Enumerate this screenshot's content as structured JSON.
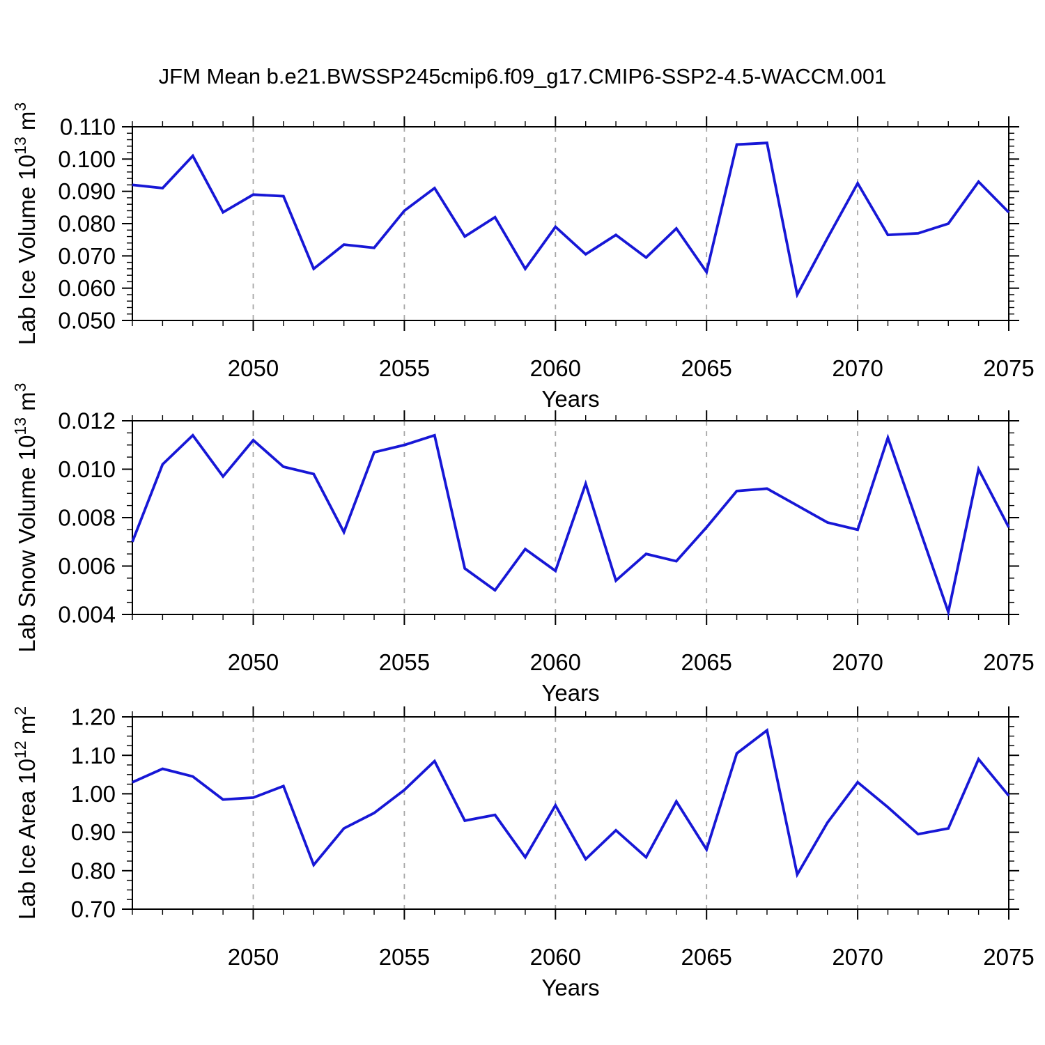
{
  "title": "JFM Mean b.e21.BWSSP245cmip6.f09_g17.CMIP6-SSP2-4.5-WACCM.001",
  "colors": {
    "line": "#1717d6",
    "frame": "#000000",
    "grid": "#a6a6a6",
    "background": "#ffffff"
  },
  "chart_data": [
    {
      "id": "lab-ice-volume",
      "type": "line",
      "ylabel_text": "Lab Ice Volume 10^13 m^3",
      "ylabel_parts": [
        {
          "t": "Lab Ice Volume 10",
          "sup": false
        },
        {
          "t": "13",
          "sup": true
        },
        {
          "t": " m",
          "sup": false
        },
        {
          "t": "3",
          "sup": true
        }
      ],
      "xlabel": "Years",
      "xlim": [
        2046,
        2075
      ],
      "ylim": [
        0.05,
        0.11
      ],
      "xticks": {
        "values": [
          2050,
          2055,
          2060,
          2065,
          2070,
          2075
        ],
        "labels": [
          "2050",
          "2055",
          "2060",
          "2065",
          "2070",
          "2075"
        ],
        "minor_step": 1
      },
      "yticks": {
        "values": [
          0.05,
          0.06,
          0.07,
          0.08,
          0.09,
          0.1,
          0.11
        ],
        "labels": [
          "0.050",
          "0.060",
          "0.070",
          "0.080",
          "0.090",
          "0.100",
          "0.110"
        ],
        "minor_step": 0.002
      },
      "grid_x": [
        2050,
        2055,
        2060,
        2065,
        2070
      ],
      "grid_style": "vertical-dashed",
      "legend": "none",
      "x": [
        2046,
        2047,
        2048,
        2049,
        2050,
        2051,
        2052,
        2053,
        2054,
        2055,
        2056,
        2057,
        2058,
        2059,
        2060,
        2061,
        2062,
        2063,
        2064,
        2065,
        2066,
        2067,
        2068,
        2069,
        2070,
        2071,
        2072,
        2073,
        2074,
        2075
      ],
      "values": [
        0.092,
        0.091,
        0.101,
        0.0835,
        0.089,
        0.0885,
        0.066,
        0.0735,
        0.0725,
        0.084,
        0.091,
        0.076,
        0.082,
        0.066,
        0.079,
        0.0705,
        0.0765,
        0.0695,
        0.0785,
        0.065,
        0.1045,
        0.105,
        0.058,
        0.0755,
        0.0925,
        0.0765,
        0.077,
        0.08,
        0.093,
        0.0835
      ]
    },
    {
      "id": "lab-snow-volume",
      "type": "line",
      "ylabel_text": "Lab Snow Volume 10^13 m^3",
      "ylabel_parts": [
        {
          "t": "Lab Snow Volume 10",
          "sup": false
        },
        {
          "t": "13",
          "sup": true
        },
        {
          "t": " m",
          "sup": false
        },
        {
          "t": "3",
          "sup": true
        }
      ],
      "xlabel": "Years",
      "xlim": [
        2046,
        2075
      ],
      "ylim": [
        0.004,
        0.012
      ],
      "xticks": {
        "values": [
          2050,
          2055,
          2060,
          2065,
          2070,
          2075
        ],
        "labels": [
          "2050",
          "2055",
          "2060",
          "2065",
          "2070",
          "2075"
        ],
        "minor_step": 1
      },
      "yticks": {
        "values": [
          0.004,
          0.006,
          0.008,
          0.01,
          0.012
        ],
        "labels": [
          "0.004",
          "0.006",
          "0.008",
          "0.010",
          "0.012"
        ],
        "minor_step": 0.0005
      },
      "grid_x": [
        2050,
        2055,
        2060,
        2065,
        2070
      ],
      "grid_style": "vertical-dashed",
      "legend": "none",
      "x": [
        2046,
        2047,
        2048,
        2049,
        2050,
        2051,
        2052,
        2053,
        2054,
        2055,
        2056,
        2057,
        2058,
        2059,
        2060,
        2061,
        2062,
        2063,
        2064,
        2065,
        2066,
        2067,
        2068,
        2069,
        2070,
        2071,
        2072,
        2073,
        2074,
        2075
      ],
      "values": [
        0.007,
        0.0102,
        0.0114,
        0.0097,
        0.0112,
        0.0101,
        0.0098,
        0.0074,
        0.0107,
        0.011,
        0.0114,
        0.0059,
        0.005,
        0.0067,
        0.0058,
        0.0094,
        0.0054,
        0.0065,
        0.0062,
        0.0076,
        0.0091,
        0.0092,
        0.0085,
        0.0078,
        0.0075,
        0.0113,
        0.0077,
        0.0041,
        0.01,
        0.0076
      ]
    },
    {
      "id": "lab-ice-area",
      "type": "line",
      "ylabel_text": "Lab Ice Area 10^12 m^2",
      "ylabel_parts": [
        {
          "t": "Lab Ice Area 10",
          "sup": false
        },
        {
          "t": "12",
          "sup": true
        },
        {
          "t": " m",
          "sup": false
        },
        {
          "t": "2",
          "sup": true
        }
      ],
      "xlabel": "Years",
      "xlim": [
        2046,
        2075
      ],
      "ylim": [
        0.7,
        1.2
      ],
      "xticks": {
        "values": [
          2050,
          2055,
          2060,
          2065,
          2070,
          2075
        ],
        "labels": [
          "2050",
          "2055",
          "2060",
          "2065",
          "2070",
          "2075"
        ],
        "minor_step": 1
      },
      "yticks": {
        "values": [
          0.7,
          0.8,
          0.9,
          1.0,
          1.1,
          1.2
        ],
        "labels": [
          "0.70",
          "0.80",
          "0.90",
          "1.00",
          "1.10",
          "1.20"
        ],
        "minor_step": 0.025
      },
      "grid_x": [
        2050,
        2055,
        2060,
        2065,
        2070
      ],
      "grid_style": "vertical-dashed",
      "legend": "none",
      "x": [
        2046,
        2047,
        2048,
        2049,
        2050,
        2051,
        2052,
        2053,
        2054,
        2055,
        2056,
        2057,
        2058,
        2059,
        2060,
        2061,
        2062,
        2063,
        2064,
        2065,
        2066,
        2067,
        2068,
        2069,
        2070,
        2071,
        2072,
        2073,
        2074,
        2075
      ],
      "values": [
        1.03,
        1.065,
        1.045,
        0.985,
        0.99,
        1.02,
        0.815,
        0.91,
        0.95,
        1.01,
        1.085,
        0.93,
        0.945,
        0.835,
        0.97,
        0.83,
        0.905,
        0.835,
        0.98,
        0.855,
        1.105,
        1.165,
        0.79,
        0.925,
        1.03,
        0.965,
        0.895,
        0.91,
        1.09,
        0.995
      ]
    }
  ]
}
